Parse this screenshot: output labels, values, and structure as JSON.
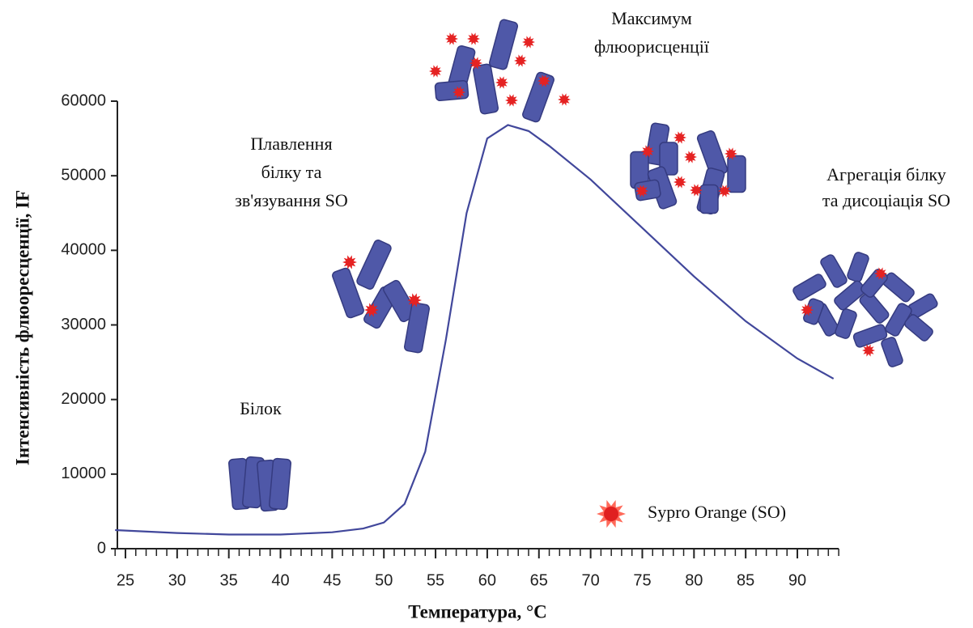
{
  "chart_data": {
    "type": "line",
    "x_label": "Температура, °C",
    "y_label": "Інтенсивність флюоресценції, IF",
    "xlim": [
      24,
      94
    ],
    "ylim": [
      0,
      60000
    ],
    "xticks": [
      25,
      30,
      35,
      40,
      45,
      50,
      55,
      60,
      65,
      70,
      75,
      80,
      85,
      90
    ],
    "xminorticks": [
      24,
      26,
      27,
      28,
      29,
      31,
      32,
      33,
      34,
      36,
      37,
      38,
      39,
      41,
      42,
      43,
      44,
      46,
      47,
      48,
      49,
      51,
      52,
      53,
      54,
      56,
      57,
      58,
      59,
      61,
      62,
      63,
      64,
      66,
      67,
      68,
      69,
      71,
      72,
      73,
      74,
      76,
      77,
      78,
      79,
      81,
      82,
      83,
      84,
      86,
      87,
      88,
      89,
      91,
      92,
      93,
      94
    ],
    "yticks": [
      0,
      10000,
      20000,
      30000,
      40000,
      50000,
      60000
    ],
    "x": [
      24,
      30,
      35,
      40,
      45,
      48,
      50,
      52,
      54,
      56,
      58,
      60,
      62,
      64,
      66,
      70,
      75,
      80,
      85,
      90,
      93.5
    ],
    "series": [
      {
        "color": "#41479b",
        "values": [
          2500,
          2100,
          1900,
          1900,
          2200,
          2700,
          3500,
          6000,
          13000,
          28000,
          45000,
          55000,
          56800,
          56000,
          54000,
          49500,
          43000,
          36500,
          30500,
          25500,
          22800
        ]
      }
    ],
    "annotations": [
      {
        "lines": [
          "Білок"
        ]
      },
      {
        "lines": [
          "Плавлення",
          "білку та",
          "зв'язування SO"
        ]
      },
      {
        "lines": [
          "Максимум",
          "флюорисценції"
        ]
      },
      {
        "lines": [
          "Агрегація білку",
          "та дисоціація SO"
        ]
      }
    ],
    "legend": {
      "label": "Sypro Orange (SO)",
      "color": "#e02020"
    }
  }
}
